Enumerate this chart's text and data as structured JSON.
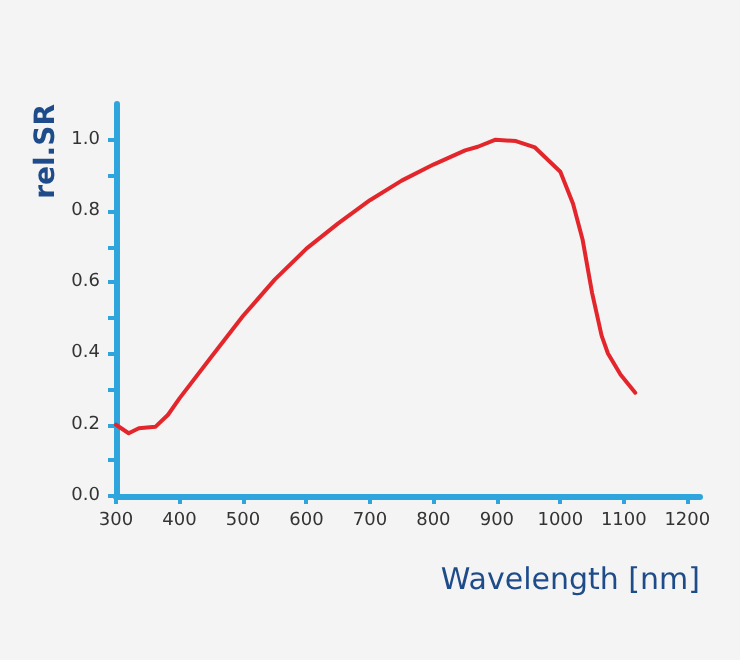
{
  "chart_data": {
    "type": "line",
    "xlabel": "Wavelength [nm]",
    "ylabel": "rel.SR",
    "x": [
      300,
      320,
      336,
      362,
      382,
      400,
      450,
      500,
      550,
      600,
      650,
      700,
      750,
      800,
      850,
      870,
      898,
      930,
      960,
      1000,
      1020,
      1035,
      1050,
      1065,
      1075,
      1095,
      1118
    ],
    "series": [
      {
        "color": "#e3262b",
        "values": [
          0.2,
          0.176,
          0.19,
          0.194,
          0.228,
          0.274,
          0.39,
          0.505,
          0.607,
          0.694,
          0.765,
          0.83,
          0.885,
          0.93,
          0.97,
          0.98,
          1.0,
          0.996,
          0.978,
          0.91,
          0.82,
          0.72,
          0.57,
          0.45,
          0.4,
          0.34,
          0.29
        ]
      }
    ],
    "xlim": [
      300,
      1220
    ],
    "xticks": [
      300,
      400,
      500,
      600,
      700,
      800,
      900,
      1000,
      1100,
      1200
    ],
    "ylim": [
      0,
      1.1
    ],
    "yticks": [
      {
        "value": 0,
        "label": "0.0"
      },
      {
        "value": 0.2,
        "label": "0.2"
      },
      {
        "value": 0.4,
        "label": "0.4"
      },
      {
        "value": 0.6,
        "label": "0.6"
      },
      {
        "value": 0.8,
        "label": "0.8"
      },
      {
        "value": 1,
        "label": "1.0"
      }
    ],
    "marker": "none",
    "line_style": "solid"
  }
}
